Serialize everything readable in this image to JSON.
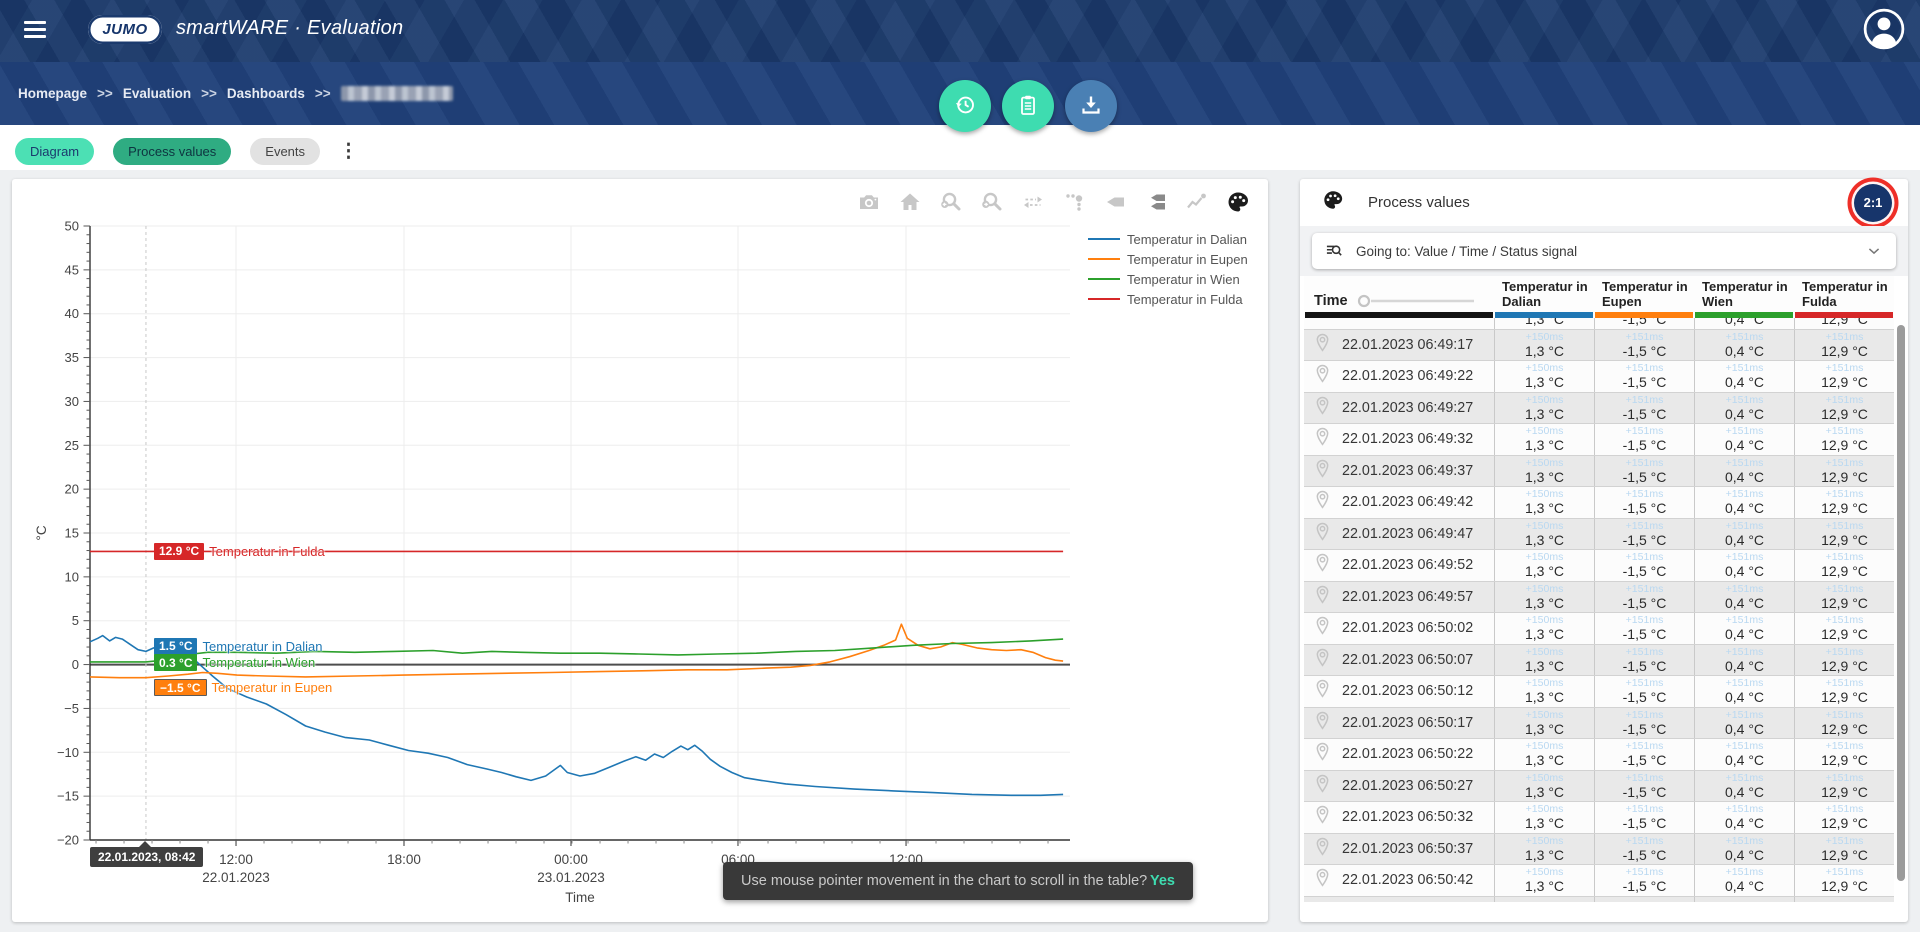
{
  "header": {
    "brand": "JUMO",
    "title": "smartWARE · Evaluation"
  },
  "breadcrumb": {
    "items": [
      "Homepage",
      "Evaluation",
      "Dashboards"
    ],
    "separator": ">>"
  },
  "action_buttons": [
    {
      "icon": "history",
      "color": "#3edcb0"
    },
    {
      "icon": "clipboard",
      "color": "#3edcb0"
    },
    {
      "icon": "download",
      "color": "#4a80b4"
    }
  ],
  "tabs": [
    {
      "label": "Diagram",
      "state": "secondary"
    },
    {
      "label": "Process values",
      "state": "active"
    },
    {
      "label": "Events",
      "state": "inactive"
    }
  ],
  "chart": {
    "toolbar": [
      "camera",
      "home",
      "zoom-back",
      "zoom-forward",
      "pan-horizontal",
      "trace-points",
      "label-tag",
      "label-tags",
      "line-chart",
      "palette"
    ],
    "cursor_tooltip": "22.01.2023, 08:42",
    "markers": [
      {
        "value_label": "12.9 °C",
        "series": "Temperatur in Fulda",
        "color": "#d62728",
        "value": 12.9,
        "bordered": false
      },
      {
        "value_label": "1.5 °C",
        "series": "Temperatur in Dalian",
        "color": "#1f77b4",
        "value": 1.5,
        "bordered": false
      },
      {
        "value_label": "0.3 °C",
        "series": "Temperatur in Wien",
        "color": "#2ca02c",
        "value": 0.3,
        "bordered": false
      },
      {
        "value_label": "−1.5 °C",
        "series": "Temperatur in Eupen",
        "color": "#ff7f0e",
        "value": -1.5,
        "bordered": true
      }
    ],
    "chart_data": {
      "type": "line",
      "title": "",
      "xlabel": "Time",
      "ylabel": "°C",
      "ylim": [
        -20,
        50
      ],
      "ytick_step": 5,
      "grid": true,
      "legend_position": "top-right",
      "x_ticks": [
        {
          "f": 0.149,
          "label": "12:00",
          "date": "22.01.2023"
        },
        {
          "f": 0.3204,
          "label": "18:00",
          "date": ""
        },
        {
          "f": 0.4908,
          "label": "00:00",
          "date": "23.01.2023"
        },
        {
          "f": 0.6612,
          "label": "06:00",
          "date": ""
        },
        {
          "f": 0.8327,
          "label": "12:00",
          "date": ""
        }
      ],
      "cursor_x_f": 0.0571,
      "series": [
        {
          "name": "Temperatur in Dalian",
          "color": "#1f77b4",
          "points": [
            [
              0,
              2.6
            ],
            [
              0.008,
              3.0
            ],
            [
              0.013,
              3.3
            ],
            [
              0.02,
              2.7
            ],
            [
              0.026,
              3.1
            ],
            [
              0.033,
              2.9
            ],
            [
              0.041,
              2.3
            ],
            [
              0.049,
              1.7
            ],
            [
              0.057,
              1.5
            ],
            [
              0.065,
              1.9
            ],
            [
              0.075,
              1.6
            ],
            [
              0.085,
              1.7
            ],
            [
              0.095,
              1.4
            ],
            [
              0.105,
              0.7
            ],
            [
              0.115,
              -0.3
            ],
            [
              0.125,
              -1.3
            ],
            [
              0.14,
              -2.7
            ],
            [
              0.16,
              -3.7
            ],
            [
              0.18,
              -4.5
            ],
            [
              0.2,
              -5.7
            ],
            [
              0.22,
              -7.0
            ],
            [
              0.24,
              -7.7
            ],
            [
              0.26,
              -8.3
            ],
            [
              0.285,
              -8.6
            ],
            [
              0.305,
              -9.2
            ],
            [
              0.325,
              -9.8
            ],
            [
              0.345,
              -10.1
            ],
            [
              0.365,
              -10.6
            ],
            [
              0.385,
              -11.4
            ],
            [
              0.405,
              -11.9
            ],
            [
              0.42,
              -12.3
            ],
            [
              0.435,
              -12.8
            ],
            [
              0.45,
              -13.2
            ],
            [
              0.465,
              -12.7
            ],
            [
              0.48,
              -11.5
            ],
            [
              0.487,
              -12.3
            ],
            [
              0.5,
              -12.7
            ],
            [
              0.515,
              -12.4
            ],
            [
              0.53,
              -11.7
            ],
            [
              0.545,
              -11.0
            ],
            [
              0.557,
              -10.5
            ],
            [
              0.567,
              -10.9
            ],
            [
              0.576,
              -10.2
            ],
            [
              0.585,
              -10.6
            ],
            [
              0.594,
              -9.9
            ],
            [
              0.603,
              -9.3
            ],
            [
              0.61,
              -9.7
            ],
            [
              0.617,
              -9.2
            ],
            [
              0.625,
              -9.9
            ],
            [
              0.633,
              -10.8
            ],
            [
              0.643,
              -11.6
            ],
            [
              0.655,
              -12.3
            ],
            [
              0.668,
              -12.9
            ],
            [
              0.685,
              -13.2
            ],
            [
              0.71,
              -13.6
            ],
            [
              0.74,
              -13.9
            ],
            [
              0.78,
              -14.2
            ],
            [
              0.82,
              -14.4
            ],
            [
              0.86,
              -14.6
            ],
            [
              0.9,
              -14.8
            ],
            [
              0.94,
              -14.9
            ],
            [
              0.97,
              -14.9
            ],
            [
              0.993,
              -14.8
            ]
          ]
        },
        {
          "name": "Temperatur in Eupen",
          "color": "#ff7f0e",
          "points": [
            [
              0,
              -1.4
            ],
            [
              0.03,
              -1.5
            ],
            [
              0.057,
              -1.5
            ],
            [
              0.08,
              -1.3
            ],
            [
              0.1,
              -1.1
            ],
            [
              0.115,
              -0.9
            ],
            [
              0.13,
              -1.0
            ],
            [
              0.15,
              -1.2
            ],
            [
              0.18,
              -1.3
            ],
            [
              0.22,
              -1.4
            ],
            [
              0.27,
              -1.3
            ],
            [
              0.32,
              -1.2
            ],
            [
              0.37,
              -1.1
            ],
            [
              0.42,
              -1.0
            ],
            [
              0.47,
              -0.9
            ],
            [
              0.52,
              -0.8
            ],
            [
              0.57,
              -0.7
            ],
            [
              0.61,
              -0.6
            ],
            [
              0.65,
              -0.6
            ],
            [
              0.69,
              -0.4
            ],
            [
              0.715,
              -0.3
            ],
            [
              0.735,
              -0.1
            ],
            [
              0.755,
              0.3
            ],
            [
              0.775,
              0.9
            ],
            [
              0.795,
              1.6
            ],
            [
              0.81,
              2.2
            ],
            [
              0.822,
              2.8
            ],
            [
              0.828,
              4.6
            ],
            [
              0.834,
              3.0
            ],
            [
              0.845,
              2.2
            ],
            [
              0.857,
              1.8
            ],
            [
              0.868,
              2.0
            ],
            [
              0.88,
              2.5
            ],
            [
              0.89,
              2.3
            ],
            [
              0.905,
              1.9
            ],
            [
              0.92,
              1.7
            ],
            [
              0.935,
              1.6
            ],
            [
              0.95,
              1.7
            ],
            [
              0.962,
              1.4
            ],
            [
              0.975,
              0.8
            ],
            [
              0.985,
              0.5
            ],
            [
              0.993,
              0.4
            ]
          ]
        },
        {
          "name": "Temperatur in Wien",
          "color": "#2ca02c",
          "points": [
            [
              0,
              0.3
            ],
            [
              0.03,
              0.3
            ],
            [
              0.057,
              0.3
            ],
            [
              0.075,
              0.5
            ],
            [
              0.09,
              0.8
            ],
            [
              0.105,
              1.2
            ],
            [
              0.12,
              1.4
            ],
            [
              0.15,
              1.4
            ],
            [
              0.19,
              1.3
            ],
            [
              0.23,
              1.5
            ],
            [
              0.27,
              1.4
            ],
            [
              0.31,
              1.5
            ],
            [
              0.35,
              1.6
            ],
            [
              0.38,
              1.3
            ],
            [
              0.41,
              1.5
            ],
            [
              0.44,
              1.4
            ],
            [
              0.48,
              1.3
            ],
            [
              0.52,
              1.3
            ],
            [
              0.56,
              1.2
            ],
            [
              0.6,
              1.1
            ],
            [
              0.64,
              1.2
            ],
            [
              0.68,
              1.3
            ],
            [
              0.72,
              1.5
            ],
            [
              0.76,
              1.6
            ],
            [
              0.8,
              1.9
            ],
            [
              0.84,
              2.2
            ],
            [
              0.88,
              2.4
            ],
            [
              0.92,
              2.5
            ],
            [
              0.96,
              2.7
            ],
            [
              0.993,
              2.9
            ]
          ]
        },
        {
          "name": "Temperatur in Fulda",
          "color": "#d62728",
          "points": [
            [
              0,
              12.9
            ],
            [
              0.993,
              12.9
            ]
          ]
        }
      ]
    }
  },
  "toast": {
    "message": "Use mouse pointer movement in the chart to scroll in the table?",
    "action": "Yes"
  },
  "panel": {
    "title": "Process values",
    "ratio_badge": "2:1",
    "dropdown": {
      "label": "Going to: Value / Time / Status signal"
    },
    "table": {
      "time_header": "Time",
      "time_bar_color": "#141414",
      "columns": [
        {
          "line1": "Temperatur in",
          "line2": "Dalian",
          "color": "#1f77b4",
          "offset": "+150ms",
          "value": "1,3 °C"
        },
        {
          "line1": "Temperatur in",
          "line2": "Eupen",
          "color": "#ff7f0e",
          "offset": "+151ms",
          "value": "-1,5 °C"
        },
        {
          "line1": "Temperatur in",
          "line2": "Wien",
          "color": "#2ca02c",
          "offset": "+151ms",
          "value": "0,4 °C"
        },
        {
          "line1": "Temperatur in",
          "line2": "Fulda",
          "color": "#d62728",
          "offset": "+151ms",
          "value": "12,9 °C"
        }
      ],
      "times": [
        "22.01.2023 06:49:17",
        "22.01.2023 06:49:22",
        "22.01.2023 06:49:27",
        "22.01.2023 06:49:32",
        "22.01.2023 06:49:37",
        "22.01.2023 06:49:42",
        "22.01.2023 06:49:47",
        "22.01.2023 06:49:52",
        "22.01.2023 06:49:57",
        "22.01.2023 06:50:02",
        "22.01.2023 06:50:07",
        "22.01.2023 06:50:12",
        "22.01.2023 06:50:17",
        "22.01.2023 06:50:22",
        "22.01.2023 06:50:27",
        "22.01.2023 06:50:32",
        "22.01.2023 06:50:37",
        "22.01.2023 06:50:42"
      ],
      "partial_top_values": [
        "1,3 °C",
        "-1,5 °C",
        "0,4 °C",
        "12,9 °C"
      ]
    }
  },
  "colors": {
    "topbar": "#1b3a6d",
    "breadcrumb_bar": "#20417a",
    "accent_teal": "#3edcb0",
    "download_blue": "#4a80b4",
    "tab_active": "#2fac82",
    "tab_secondary": "#4ce0b4",
    "row_stripe": "#e9e9e9",
    "ms_text": "#b9d8f1",
    "annotation_ring": "#ee2f28",
    "toast_bg": "#393939"
  }
}
